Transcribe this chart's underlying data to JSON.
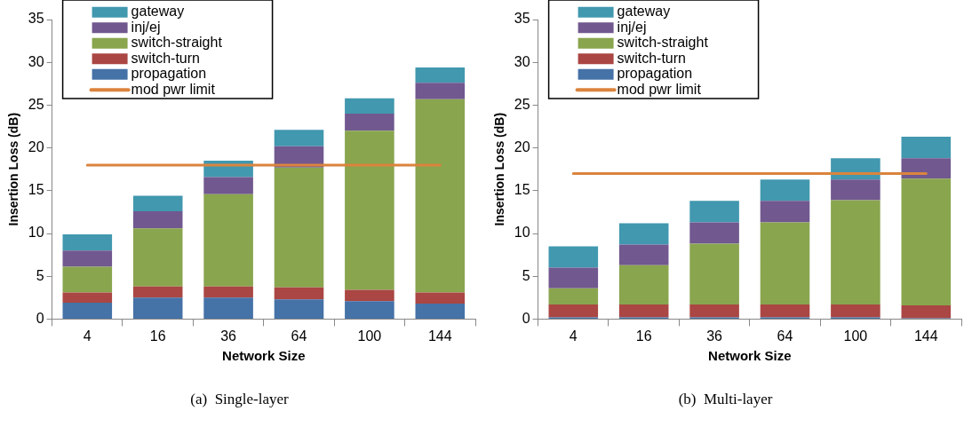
{
  "chart_data": [
    {
      "type": "bar",
      "title": "(a)  Single-layer",
      "xlabel": "Network Size",
      "ylabel": "Insertion Loss (dB)",
      "categories": [
        "4",
        "16",
        "36",
        "64",
        "100",
        "144"
      ],
      "stacked": true,
      "ylim": [
        0,
        35
      ],
      "yticks": [
        0,
        5,
        10,
        15,
        20,
        25,
        30,
        35
      ],
      "grid": false,
      "legend": "top left",
      "series": [
        {
          "name": "propagation",
          "color": "#4572a7",
          "values": [
            1.9,
            2.5,
            2.5,
            2.3,
            2.1,
            1.8
          ]
        },
        {
          "name": "switch-turn",
          "color": "#aa4643",
          "values": [
            1.2,
            1.3,
            1.3,
            1.4,
            1.3,
            1.3
          ]
        },
        {
          "name": "switch-straight",
          "color": "#89a54e",
          "values": [
            3.0,
            6.8,
            10.8,
            14.0,
            18.6,
            22.6
          ]
        },
        {
          "name": "inj/ej",
          "color": "#71588f",
          "values": [
            1.9,
            2.0,
            2.0,
            2.5,
            2.0,
            1.9
          ]
        },
        {
          "name": "gateway",
          "color": "#4198af",
          "values": [
            1.9,
            1.8,
            1.9,
            1.9,
            1.8,
            1.8
          ]
        },
        {
          "name": "mod pwr limit",
          "type": "line",
          "color": "#db843d",
          "values": [
            18,
            18,
            18,
            18,
            18,
            18
          ]
        }
      ]
    },
    {
      "type": "bar",
      "title": "(b)  Multi-layer",
      "xlabel": "Network Size",
      "ylabel": "Insertion Loss (dB)",
      "categories": [
        "4",
        "16",
        "36",
        "64",
        "100",
        "144"
      ],
      "stacked": true,
      "ylim": [
        0,
        35
      ],
      "yticks": [
        0,
        5,
        10,
        15,
        20,
        25,
        30,
        35
      ],
      "grid": false,
      "legend": "top left",
      "series": [
        {
          "name": "propagation",
          "color": "#4572a7",
          "values": [
            0.2,
            0.2,
            0.2,
            0.2,
            0.2,
            0.1
          ]
        },
        {
          "name": "switch-turn",
          "color": "#aa4643",
          "values": [
            1.5,
            1.5,
            1.5,
            1.5,
            1.5,
            1.5
          ]
        },
        {
          "name": "switch-straight",
          "color": "#89a54e",
          "values": [
            1.9,
            4.6,
            7.1,
            9.6,
            12.2,
            14.8
          ]
        },
        {
          "name": "inj/ej",
          "color": "#71588f",
          "values": [
            2.4,
            2.4,
            2.5,
            2.5,
            2.4,
            2.4
          ]
        },
        {
          "name": "gateway",
          "color": "#4198af",
          "values": [
            2.5,
            2.5,
            2.5,
            2.5,
            2.5,
            2.5
          ]
        },
        {
          "name": "mod pwr limit",
          "type": "line",
          "color": "#db843d",
          "values": [
            17,
            17,
            17,
            17,
            17,
            17
          ]
        }
      ]
    }
  ]
}
